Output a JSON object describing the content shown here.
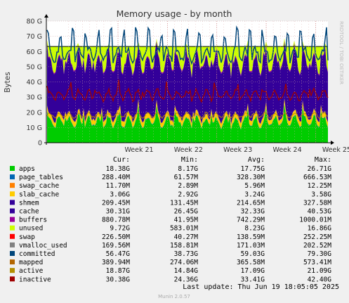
{
  "chart_data": {
    "type": "area",
    "title": "Memory usage - by month",
    "ylabel": "Bytes",
    "xlabel": "",
    "watermark": "RRDTOOL / TOBI OETIKER",
    "ylim": [
      0,
      80
    ],
    "yunit": "G",
    "yticks": [
      0,
      10,
      20,
      30,
      40,
      50,
      60,
      70,
      80
    ],
    "ytick_labels": [
      "0",
      "10 G",
      "20 G",
      "30 G",
      "40 G",
      "50 G",
      "60 G",
      "70 G",
      "80 G"
    ],
    "xlim": [
      19.55,
      25.25
    ],
    "xticks": [
      21,
      22,
      23,
      24,
      25
    ],
    "xtick_labels": [
      "Week 21",
      "Week 22",
      "Week 23",
      "Week 24",
      "Week 25"
    ],
    "grid": true,
    "legend_placement": "bottom",
    "columns": [
      "Cur:",
      "Min:",
      "Avg:",
      "Max:"
    ],
    "series": [
      {
        "name": "apps",
        "color": "#00cc00",
        "cur": "18.38G",
        "min": "8.17G",
        "avg": "17.75G",
        "max": "26.71G",
        "level": 17.75
      },
      {
        "name": "page_tables",
        "color": "#0066b3",
        "cur": "288.40M",
        "min": "61.57M",
        "avg": "328.30M",
        "max": "666.53M",
        "level": 0.33
      },
      {
        "name": "swap_cache",
        "color": "#ff8000",
        "cur": "11.70M",
        "min": "2.89M",
        "avg": "5.96M",
        "max": "12.25M",
        "level": 0.01
      },
      {
        "name": "slab_cache",
        "color": "#ffcc00",
        "cur": "3.06G",
        "min": "2.92G",
        "avg": "3.24G",
        "max": "3.58G",
        "level": 3.24
      },
      {
        "name": "shmem",
        "color": "#330099",
        "cur": "209.45M",
        "min": "131.45M",
        "avg": "214.65M",
        "max": "327.58M",
        "level": 0.21
      },
      {
        "name": "cache",
        "color": "#330099",
        "cur": "30.31G",
        "min": "26.45G",
        "avg": "32.33G",
        "max": "40.53G",
        "level": 32.33
      },
      {
        "name": "buffers",
        "color": "#990099",
        "cur": "880.78M",
        "min": "41.95M",
        "avg": "742.29M",
        "max": "1000.01M",
        "level": 0.74
      },
      {
        "name": "unused",
        "color": "#ccff00",
        "cur": "9.72G",
        "min": "583.01M",
        "avg": "8.23G",
        "max": "16.86G",
        "level": 8.23
      },
      {
        "name": "swap",
        "color": "#ff0000",
        "cur": "226.50M",
        "min": "40.27M",
        "avg": "138.59M",
        "max": "252.25M",
        "level": 0.14
      },
      {
        "name": "vmalloc_used",
        "color": "#808080",
        "cur": "169.56M",
        "min": "158.81M",
        "avg": "171.03M",
        "max": "202.52M",
        "level": 0.17
      },
      {
        "name": "committed",
        "color": "#00457a",
        "cur": "56.47G",
        "min": "38.73G",
        "avg": "59.03G",
        "max": "79.30G",
        "level": 59.03
      },
      {
        "name": "mapped",
        "color": "#b36600",
        "cur": "389.94M",
        "min": "274.06M",
        "avg": "365.58M",
        "max": "573.41M",
        "level": 0.37
      },
      {
        "name": "active",
        "color": "#b38f00",
        "cur": "18.87G",
        "min": "14.84G",
        "avg": "17.09G",
        "max": "21.09G",
        "level": 17.09
      },
      {
        "name": "inactive",
        "color": "#a00000",
        "cur": "30.38G",
        "min": "24.36G",
        "avg": "33.41G",
        "max": "42.40G",
        "level": 33.41
      }
    ],
    "ram_limit": 63.3,
    "last_update": "Last update: Thu Jun 19 18:05:05 2025",
    "footer": "Munin 2.0.57"
  }
}
